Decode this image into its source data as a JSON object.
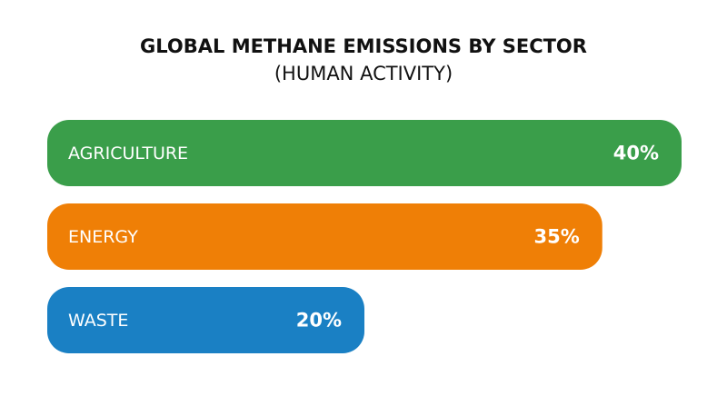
{
  "chart_data": {
    "type": "bar",
    "orientation": "horizontal",
    "title": "GLOBAL METHANE EMISSIONS BY SECTOR",
    "subtitle": "(HUMAN ACTIVITY)",
    "categories": [
      "AGRICULTURE",
      "ENERGY",
      "WASTE"
    ],
    "values": [
      40,
      35,
      20
    ],
    "value_labels": [
      "40%",
      "35%",
      "20%"
    ],
    "colors": [
      "#3a9e4a",
      "#ef7f06",
      "#1a80c4"
    ]
  }
}
